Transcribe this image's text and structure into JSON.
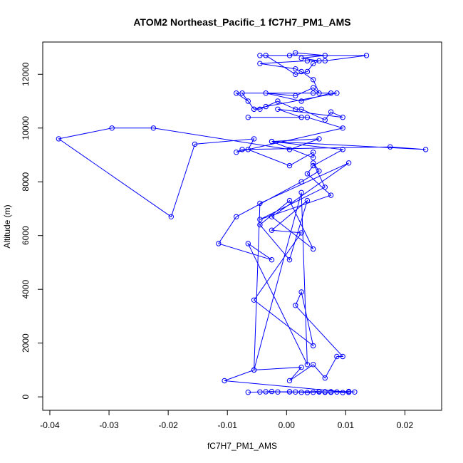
{
  "chart_data": {
    "type": "line",
    "title": "ATOM2 Northeast_Pacific_1 fC7H7_PM1_AMS",
    "xlabel": "fC7H7_PM1_AMS",
    "ylabel": "Altitude (m)",
    "xlim": [
      -0.0412,
      0.0262
    ],
    "ylim": [
      -500,
      13200
    ],
    "x_ticks": [
      -0.04,
      -0.03,
      -0.02,
      -0.01,
      0.0,
      0.01,
      0.02
    ],
    "x_tick_labels": [
      "-0.04",
      "-0.03",
      "-0.02",
      "-0.01",
      "0.00",
      "0.01",
      "0.02"
    ],
    "y_ticks": [
      0,
      2000,
      4000,
      6000,
      8000,
      10000,
      12000
    ],
    "y_tick_labels": [
      "0",
      "2000",
      "4000",
      "6000",
      "8000",
      "10000",
      "12000"
    ],
    "grid": false,
    "colors": {
      "series": "#0000ff",
      "axis": "#000000",
      "background": "#ffffff"
    },
    "x": [
      -0.0045,
      -0.0065,
      0.0015,
      0.0065,
      0.0075,
      0.0025,
      0.0005,
      0.0025,
      -0.0055,
      0.0005,
      0.0045,
      0.0065,
      0.0105,
      -0.0055,
      -0.0025,
      0.0005,
      0.0045,
      0.0065,
      0.0025,
      -0.0015,
      0.0035,
      0.0005,
      0.0055,
      -0.0095,
      0.0015,
      0.0065,
      0.0015,
      0.0025,
      0.0095,
      -0.0025,
      -0.0015,
      -0.0025,
      0.0025,
      -0.0015,
      -0.0045,
      0.0045,
      0.0065,
      0.0075,
      0.0005,
      -0.0125,
      0.0045,
      0.0095,
      -0.0055,
      -0.0065,
      -0.0085,
      -0.0025,
      0.0035,
      0.0015,
      0.0035,
      -0.0045,
      0.0105,
      0.0085,
      0.0045,
      0.0005,
      -0.0105,
      0.0105,
      0.0075,
      0.0045,
      -0.0015,
      0.0005,
      0.0055,
      -0.0015,
      -0.0035,
      -0.0045,
      0.0095,
      -0.0025,
      0.0045,
      0.0055,
      0.0065,
      0.0115,
      -0.0055,
      0.0045,
      0.0045,
      0.0025,
      0.0015,
      -0.0045,
      0.0015,
      0.0045,
      0.0095,
      0.0005,
      -0.0005,
      -0.0025,
      -0.0035,
      0.0005,
      0.0045,
      0.0035,
      0.0005,
      0.0015,
      0.0055,
      0.0085,
      0.0025,
      0.0045,
      0.0025,
      -0.0025,
      0.0035,
      0.0015,
      0.0005,
      -0.0035,
      -0.0015,
      0.0005,
      0.0045,
      -0.0025
    ],
    "y": [
      180,
      190,
      200,
      170,
      180,
      160,
      180,
      190,
      170,
      190,
      170,
      180,
      200,
      180,
      190,
      200,
      170,
      160,
      190,
      180,
      170,
      1100,
      1500,
      600,
      1200,
      700,
      3400,
      3900,
      1500,
      5100,
      1200,
      6100,
      7300,
      3600,
      6400,
      6700,
      5700,
      2700,
      1500,
      6700,
      7300,
      5500,
      7200,
      1000,
      7400,
      800,
      7600,
      8000,
      8400,
      8900,
      8700,
      8300,
      8700,
      9100,
      9200,
      9600,
      9200,
      9300,
      9000,
      8600,
      10000,
      9700,
      10000,
      9500,
      10000,
      10400,
      10700,
      10500,
      10400,
      10300,
      10400,
      10600,
      10700,
      10800,
      10700,
      11000,
      11200,
      11200,
      11300,
      11000,
      11500,
      11300,
      11200,
      11600,
      11800,
      12100,
      12300,
      12300,
      12400,
      12500,
      12700,
      12700,
      12700,
      12700,
      12800,
      12700,
      12600,
      12500,
      12500,
      12400,
      12100,
      11900
    ],
    "series": [
      {
        "x": [
          -0.0065,
          -0.0045,
          0.0005,
          0.0015,
          0.0055,
          0.0065,
          0.0075,
          0.0105,
          0.0115,
          0.0045,
          -0.0035,
          -0.0025,
          -0.0015,
          0.0005,
          0.0025,
          0.0035,
          0.0055,
          0.0065,
          0.0075,
          0.0085,
          0.0095,
          0.0105,
          -0.0105,
          -0.0055,
          0.0025,
          0.0005,
          0.0045,
          0.0065,
          0.0085,
          0.0095,
          0.0015,
          0.0025,
          0.0045,
          -0.0055,
          0.0025,
          -0.0025,
          0.0035,
          0.0005,
          -0.0045,
          0.0005,
          0.0045,
          -0.0025,
          0.0105,
          -0.0045,
          -0.0055,
          0.0025,
          0.0035,
          -0.0065,
          -0.0025,
          -0.0115,
          -0.0085,
          0.0025,
          0.0055,
          0.0045,
          0.0065,
          -0.0045,
          0.0075,
          0.0035,
          0.0045,
          0.0095,
          -0.0025,
          0.0045,
          0.0045,
          0.0005,
          -0.0065,
          -0.0055,
          -0.0155,
          -0.0195,
          -0.0385,
          -0.0295,
          -0.0225,
          0.0005,
          0.0055,
          -0.0025,
          0.0235,
          0.0175,
          -0.0075,
          -0.0085,
          0.0095,
          0.0035,
          -0.0065,
          0.0025,
          -0.0015,
          0.0095,
          0.0075,
          0.0065,
          0.0025,
          0.0015,
          -0.0015,
          -0.0045,
          -0.0055,
          -0.0035,
          0.0085,
          0.0045,
          -0.0085,
          -0.0065,
          -0.0055,
          -0.0075,
          0.0075,
          0.0025,
          -0.0035,
          0.0015,
          0.0045,
          0.0055,
          0.0045,
          0.0025,
          0.0015,
          -0.0045,
          0.0035,
          0.0065,
          0.0135,
          -0.0045,
          0.0005,
          0.0015,
          0.0065,
          0.0025,
          0.0055,
          0.0045,
          0.0035,
          0.0015,
          -0.0035
        ],
        "y": [
          170,
          180,
          190,
          180,
          200,
          170,
          190,
          200,
          180,
          170,
          190,
          200,
          180,
          190,
          170,
          160,
          180,
          190,
          170,
          180,
          160,
          170,
          600,
          1000,
          1100,
          600,
          1200,
          700,
          1500,
          1500,
          3400,
          3900,
          1900,
          3600,
          6100,
          6200,
          7300,
          5100,
          6400,
          7300,
          5500,
          6700,
          8700,
          7200,
          1000,
          7600,
          1200,
          5700,
          5100,
          5700,
          6700,
          8000,
          8400,
          8700,
          7800,
          6600,
          7500,
          8300,
          8600,
          9200,
          9500,
          8900,
          9100,
          8600,
          9200,
          9600,
          9400,
          6700,
          9600,
          10000,
          10000,
          9200,
          9600,
          9500,
          9200,
          9300,
          9200,
          9100,
          10000,
          10400,
          10400,
          10400,
          10700,
          10400,
          10600,
          10300,
          10700,
          10700,
          11000,
          10700,
          10700,
          10800,
          11300,
          11300,
          11300,
          11000,
          10700,
          11300,
          11300,
          11000,
          11300,
          11200,
          11500,
          11300,
          11800,
          12100,
          12200,
          12400,
          12500,
          12500,
          12700,
          12700,
          12700,
          12800,
          12700,
          12600,
          12500,
          12400,
          12100,
          12000,
          12700
        ]
      }
    ]
  }
}
